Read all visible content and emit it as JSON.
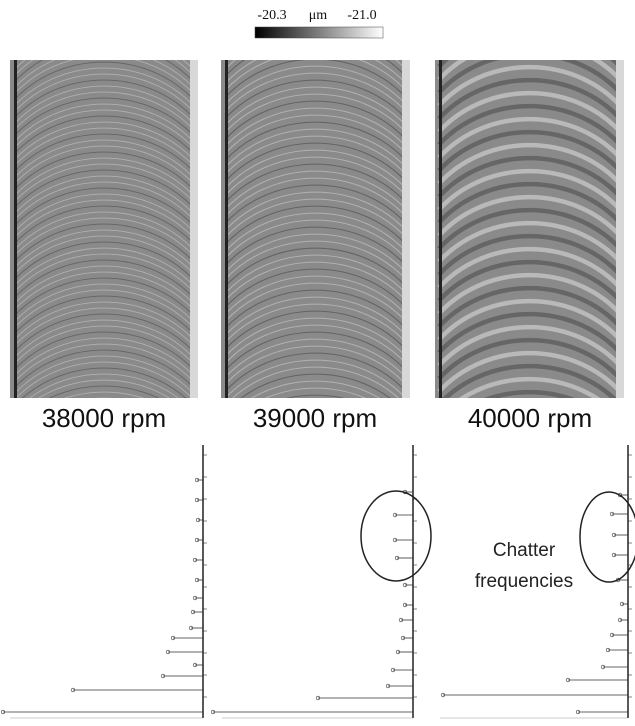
{
  "colorbar": {
    "min_label": "-20.3",
    "unit": "μm",
    "max_label": "-21.0"
  },
  "panels": [
    {
      "label": "38000 rpm"
    },
    {
      "label": "39000 rpm"
    },
    {
      "label": "40000 rpm"
    }
  ],
  "annotation": "Chatter frequencies"
}
